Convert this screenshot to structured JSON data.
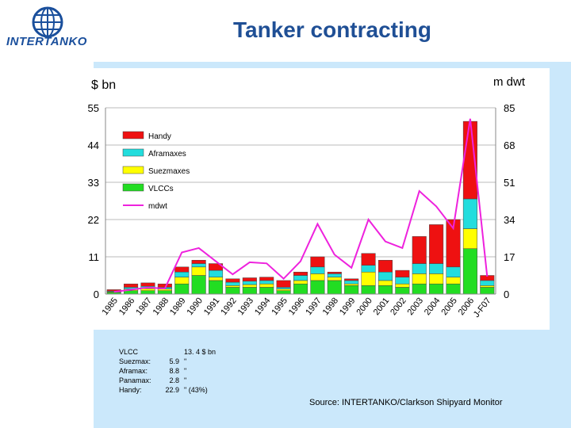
{
  "header": {
    "title": "Tanker contracting"
  },
  "logo": {
    "text": "INTERTANKO"
  },
  "chart_data": {
    "type": "bar",
    "stacked": true,
    "categories": [
      "1985",
      "1986",
      "1987",
      "1988",
      "1989",
      "1990",
      "1991",
      "1992",
      "1993",
      "1994",
      "1995",
      "1996",
      "1997",
      "1998",
      "1999",
      "2000",
      "2001",
      "2002",
      "2003",
      "2004",
      "2005",
      "2006",
      "J-F07"
    ],
    "series": [
      {
        "name": "VLCCs",
        "color": "#22dd22",
        "axis": "left",
        "values": [
          0.5,
          1,
          1,
          1,
          3,
          5.5,
          4,
          2,
          2,
          2,
          1,
          3,
          4,
          4,
          2.5,
          2.5,
          2.5,
          2,
          3,
          3,
          3,
          13.4,
          2
        ]
      },
      {
        "name": "Suezmaxes",
        "color": "#ffff00",
        "axis": "left",
        "values": [
          0.2,
          0.5,
          0.6,
          0.5,
          2,
          2.5,
          1,
          0.5,
          0.8,
          1,
          0.5,
          1,
          2,
          1,
          0.5,
          4,
          1.5,
          1,
          3,
          3,
          2,
          5.9,
          0.5
        ]
      },
      {
        "name": "Aframaxes",
        "color": "#22dddd",
        "axis": "left",
        "values": [
          0.2,
          0.5,
          0.7,
          0.5,
          1.5,
          1,
          2,
          1,
          1,
          1,
          0.5,
          1.5,
          2,
          1,
          1,
          2,
          2.5,
          2,
          3,
          3,
          3,
          8.8,
          1.5
        ]
      },
      {
        "name": "Handy",
        "color": "#ee1111",
        "axis": "left",
        "values": [
          0.4,
          1,
          1,
          1,
          1.5,
          1,
          2,
          1,
          1,
          1,
          2,
          1,
          3,
          0.5,
          0.5,
          3.5,
          3.5,
          2,
          8,
          11.5,
          14,
          22.9,
          1.5
        ]
      },
      {
        "name": "mdwt",
        "color": "#ee22dd",
        "axis": "right",
        "type": "line",
        "values": [
          1,
          2,
          3,
          2.5,
          19,
          21,
          15,
          9,
          14.5,
          14,
          7,
          15,
          32,
          18,
          12,
          34,
          24,
          21,
          47,
          40,
          30,
          80,
          8
        ]
      }
    ],
    "legend": [
      "Handy",
      "Aframaxes",
      "Suezmaxes",
      "VLCCs",
      "mdwt"
    ],
    "left_axis": {
      "label": "$ bn",
      "ticks": [
        0,
        11,
        22,
        33,
        44,
        55
      ],
      "range": [
        0,
        55
      ]
    },
    "right_axis": {
      "label": "m dwt",
      "ticks": [
        0,
        17,
        34,
        51,
        68,
        85
      ],
      "range": [
        0,
        85
      ]
    }
  },
  "stats": [
    {
      "label": "VLCC",
      "value": "",
      "unit": "13. 4 $ bn"
    },
    {
      "label": "Suezmax:",
      "value": "5.9",
      "unit": "\""
    },
    {
      "label": "Aframax:",
      "value": "8.8",
      "unit": "\""
    },
    {
      "label": "Panamax:",
      "value": "2.8",
      "unit": "\""
    },
    {
      "label": "Handy:",
      "value": "22.9",
      "unit": "\"  (43%)"
    }
  ],
  "source": "Source: INTERTANKO/Clarkson Shipyard Monitor",
  "colors": {
    "title": "#1f4f95",
    "background": "#cbe8fb",
    "grid": "#bbbbbb"
  }
}
